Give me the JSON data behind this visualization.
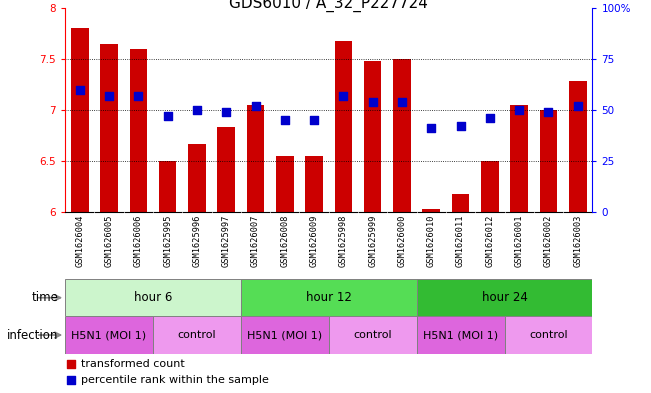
{
  "title": "GDS6010 / A_32_P227724",
  "samples": [
    "GSM1626004",
    "GSM1626005",
    "GSM1626006",
    "GSM1625995",
    "GSM1625996",
    "GSM1625997",
    "GSM1626007",
    "GSM1626008",
    "GSM1626009",
    "GSM1625998",
    "GSM1625999",
    "GSM1626000",
    "GSM1626010",
    "GSM1626011",
    "GSM1626012",
    "GSM1626001",
    "GSM1626002",
    "GSM1626003"
  ],
  "red_values": [
    7.8,
    7.65,
    7.6,
    6.5,
    6.67,
    6.83,
    7.05,
    6.55,
    6.55,
    7.68,
    7.48,
    7.5,
    6.03,
    6.18,
    6.5,
    7.05,
    7.0,
    7.28
  ],
  "blue_percentiles": [
    60,
    57,
    57,
    47,
    50,
    49,
    52,
    45,
    45,
    57,
    54,
    54,
    41,
    42,
    46,
    50,
    49,
    52
  ],
  "ylim": [
    6.0,
    8.0
  ],
  "yticks_left": [
    6.0,
    6.5,
    7.0,
    7.5,
    8.0
  ],
  "yticks_right_vals": [
    0,
    25,
    50,
    75,
    100
  ],
  "yticks_right_labels": [
    "0",
    "25",
    "50",
    "75",
    "100%"
  ],
  "time_groups": [
    {
      "label": "hour 6",
      "start": 0,
      "end": 6,
      "color": "#ccf5cc"
    },
    {
      "label": "hour 12",
      "start": 6,
      "end": 12,
      "color": "#55dd55"
    },
    {
      "label": "hour 24",
      "start": 12,
      "end": 18,
      "color": "#33bb33"
    }
  ],
  "infection_groups": [
    {
      "label": "H5N1 (MOI 1)",
      "start": 0,
      "end": 3,
      "color": "#dd66dd"
    },
    {
      "label": "control",
      "start": 3,
      "end": 6,
      "color": "#ee99ee"
    },
    {
      "label": "H5N1 (MOI 1)",
      "start": 6,
      "end": 9,
      "color": "#dd66dd"
    },
    {
      "label": "control",
      "start": 9,
      "end": 12,
      "color": "#ee99ee"
    },
    {
      "label": "H5N1 (MOI 1)",
      "start": 12,
      "end": 15,
      "color": "#dd66dd"
    },
    {
      "label": "control",
      "start": 15,
      "end": 18,
      "color": "#ee99ee"
    }
  ],
  "bar_color": "#cc0000",
  "dot_color": "#0000cc",
  "bar_bottom": 6.0,
  "bar_width": 0.6,
  "dot_size": 28,
  "grid_color": "#000000",
  "sample_bg": "#cccccc",
  "bg_color": "#ffffff",
  "title_fontsize": 11,
  "tick_fontsize": 7.5,
  "sample_fontsize": 6.2,
  "band_fontsize": 8.5,
  "legend_fontsize": 8
}
